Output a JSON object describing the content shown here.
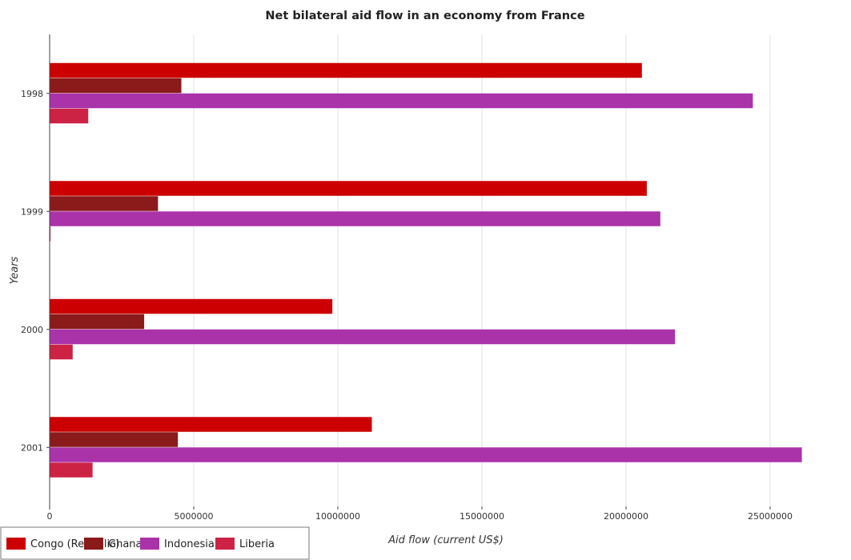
{
  "colors": {
    "Congo (Republic)": "#cc0000",
    "Ghana": "#8b1a1a",
    "Indonesia": "#aa33aa",
    "Liberia": "#cc2244",
    "grid": "#e0e0e0"
  },
  "chart_data": {
    "type": "bar",
    "orientation": "horizontal",
    "title": "Net bilateral aid flow in an economy from France",
    "xlabel": "Aid flow (current US$)",
    "ylabel": "Years",
    "categories": [
      "1998",
      "1999",
      "2000",
      "2001"
    ],
    "xlim": [
      0,
      27500000
    ],
    "xticks": [
      0,
      5000000,
      10000000,
      15000000,
      20000000,
      25000000
    ],
    "xtick_labels": [
      "0",
      "5000000",
      "10000000",
      "15000000",
      "20000000",
      "25000000"
    ],
    "grid": true,
    "legend_position": "bottom-left",
    "series": [
      {
        "name": "Congo (Republic)",
        "values": [
          20550000,
          20720000,
          9810000,
          11180000
        ]
      },
      {
        "name": "Ghana",
        "values": [
          4570000,
          3760000,
          3280000,
          4450000
        ]
      },
      {
        "name": "Indonesia",
        "values": [
          24400000,
          21190000,
          21700000,
          26100000
        ]
      },
      {
        "name": "Liberia",
        "values": [
          1340000,
          30000,
          800000,
          1490000
        ]
      }
    ]
  }
}
